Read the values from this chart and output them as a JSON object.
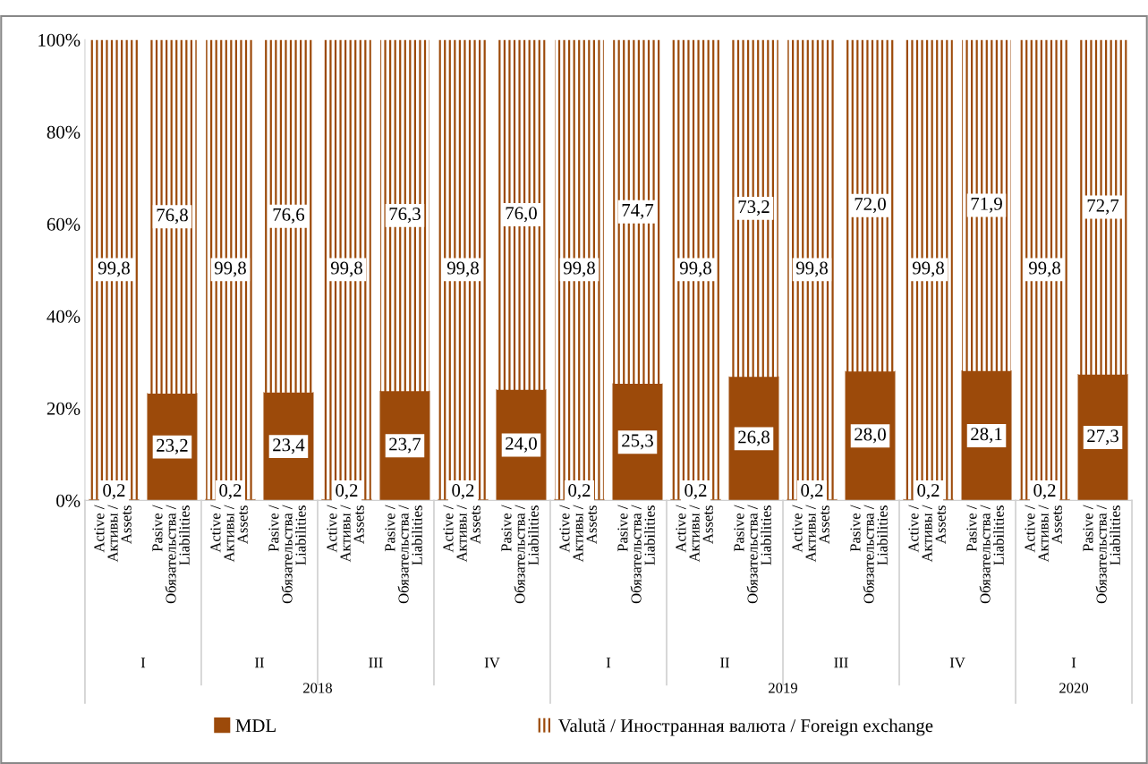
{
  "chart_data": {
    "type": "bar",
    "stacked": true,
    "categories": [
      "Active /\nАктивы /\nAssets",
      "Pasive /\nОбязательства /\nLiabilities",
      "Active /\nАктивы /\nAssets",
      "Pasive /\nОбязательства /\nLiabilities",
      "Active /\nАктивы /\nAssets",
      "Pasive /\nОбязательства /\nLiabilities",
      "Active /\nАктивы /\nAssets",
      "Pasive /\nОбязательства /\nLiabilities",
      "Active /\nАктивы /\nAssets",
      "Pasive /\nОбязательства /\nLiabilities",
      "Active /\nАктивы /\nAssets",
      "Pasive /\nОбязательства /\nLiabilities",
      "Active /\nАктивы /\nAssets",
      "Pasive /\nОбязательства /\nLiabilities",
      "Active /\nАктивы /\nAssets",
      "Pasive /\nОбязательства /\nLiabilities",
      "Active /\nАктивы /\nAssets",
      "Pasive /\nОбязательства /\nLiabilities"
    ],
    "series": [
      {
        "name": "MDL",
        "color": "#9c4a0a",
        "values": [
          0.2,
          23.2,
          0.2,
          23.4,
          0.2,
          23.7,
          0.2,
          24.0,
          0.2,
          25.3,
          0.2,
          26.8,
          0.2,
          28.0,
          0.2,
          28.1,
          0.2,
          27.3
        ],
        "value_labels": [
          "0,2",
          "23,2",
          "0,2",
          "23,4",
          "0,2",
          "23,7",
          "0,2",
          "24,0",
          "0,2",
          "25,3",
          "0,2",
          "26,8",
          "0,2",
          "28,0",
          "0,2",
          "28,1",
          "0,2",
          "27,3"
        ]
      },
      {
        "name": "Valută / Иностранная валюта / Foreign exchange",
        "color": "#9c4a0a",
        "values": [
          99.8,
          76.8,
          99.8,
          76.6,
          99.8,
          76.3,
          99.8,
          76.0,
          99.8,
          74.7,
          99.8,
          73.2,
          99.8,
          72.0,
          99.8,
          71.9,
          99.8,
          72.7
        ],
        "value_labels": [
          "99,8",
          "76,8",
          "99,8",
          "76,6",
          "99,8",
          "76,3",
          "99,8",
          "76,0",
          "99,8",
          "74,7",
          "99,8",
          "73,2",
          "99,8",
          "72,0",
          "99,8",
          "71,9",
          "99,8",
          "72,7"
        ]
      }
    ],
    "ylim": [
      0,
      100
    ],
    "yticks": [
      {
        "value": 0,
        "label": "0%"
      },
      {
        "value": 20,
        "label": "20%"
      },
      {
        "value": 40,
        "label": "40%"
      },
      {
        "value": 60,
        "label": "60%"
      },
      {
        "value": 80,
        "label": "80%"
      },
      {
        "value": 100,
        "label": "100%"
      }
    ],
    "annotations": [
      "I",
      "II",
      "III",
      "IV",
      "I",
      "II",
      "III",
      "IV",
      "I",
      "2018",
      "2019",
      "2020"
    ],
    "grid": false,
    "legend": "bottom"
  }
}
